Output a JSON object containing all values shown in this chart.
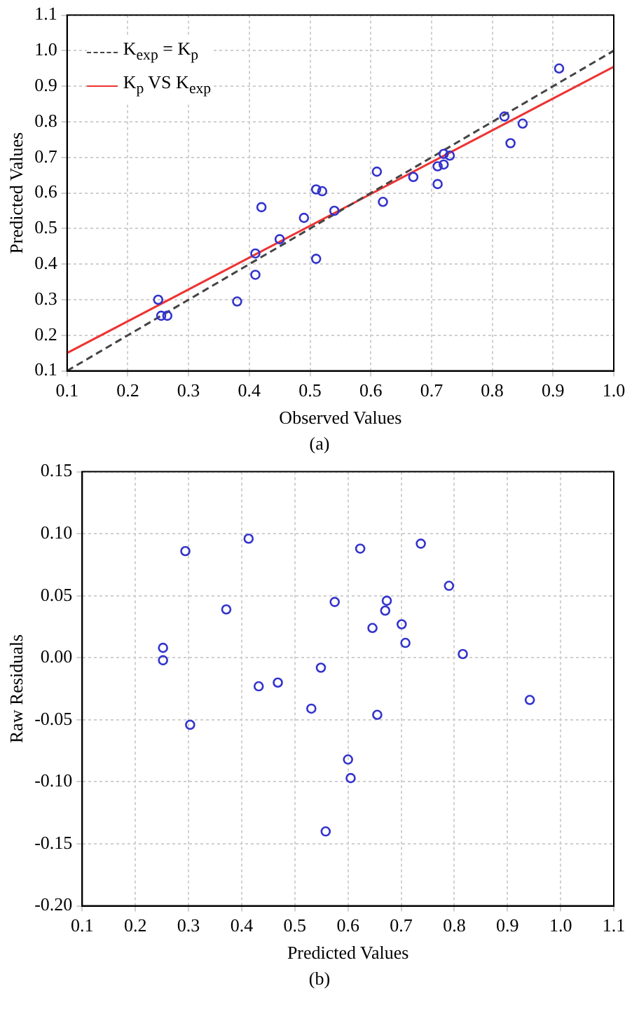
{
  "chart_data": [
    {
      "type": "scatter",
      "xlabel": "Observed Values",
      "ylabel": "Predicted Values",
      "annotations": [
        "(a)"
      ],
      "grid": true,
      "legend": "top left",
      "xlim": [
        0.1,
        1.0
      ],
      "xticks": [
        0.1,
        0.2,
        0.3,
        0.4,
        0.5,
        0.6,
        0.7,
        0.8,
        0.9,
        {
          "value": 1.0,
          "label": "1.0"
        }
      ],
      "ylim": [
        0.1,
        1.1
      ],
      "yticks": [
        0.1,
        0.2,
        0.3,
        0.4,
        0.5,
        0.6,
        0.7,
        0.8,
        0.9,
        {
          "value": 1.0,
          "label": "1.0"
        },
        1.1
      ],
      "series": [
        {
          "type": "scatter",
          "marker": "circle",
          "color": "#3333cc",
          "x": [
            0.25,
            0.255,
            0.265,
            0.38,
            0.41,
            0.41,
            0.42,
            0.45,
            0.49,
            0.51,
            0.51,
            0.52,
            0.54,
            0.61,
            0.62,
            0.67,
            0.71,
            0.71,
            0.72,
            0.72,
            0.73,
            0.82,
            0.83,
            0.85,
            0.91
          ],
          "values": [
            0.3,
            0.255,
            0.255,
            0.295,
            0.37,
            0.43,
            0.56,
            0.47,
            0.53,
            0.415,
            0.61,
            0.605,
            0.55,
            0.66,
            0.575,
            0.645,
            0.625,
            0.675,
            0.68,
            0.71,
            0.705,
            0.815,
            0.74,
            0.795,
            0.95
          ]
        },
        {
          "type": "line",
          "name": "K$_{exp}$ = K$_{p}$",
          "line_style": "dashed",
          "marker": "none",
          "color": "#444444",
          "x": [
            0.1,
            1.0
          ],
          "values": [
            0.1,
            1.0
          ]
        },
        {
          "type": "line",
          "name": "K$_{p}$ VS K$_{exp}$",
          "line_style": "solid",
          "marker": "none",
          "color": "#ee3333",
          "x": [
            0.1,
            1.0
          ],
          "values": [
            0.15,
            0.955
          ]
        }
      ]
    },
    {
      "type": "scatter",
      "xlabel": "Predicted Values",
      "ylabel": "Raw Residuals",
      "annotations": [
        "(b)"
      ],
      "grid": true,
      "xlim": [
        0.1,
        1.1
      ],
      "xticks": [
        0.1,
        0.2,
        0.3,
        0.4,
        0.5,
        0.6,
        0.7,
        0.8,
        0.9,
        {
          "value": 1.0,
          "label": "1.0"
        },
        1.1
      ],
      "ylim": [
        -0.2,
        0.15
      ],
      "yticks": [
        {
          "value": -0.2,
          "label": "-0.20"
        },
        -0.15,
        {
          "value": -0.1,
          "label": "-0.10"
        },
        -0.05,
        {
          "value": 0,
          "label": "0.00"
        },
        0.05,
        {
          "value": 0.1,
          "label": "0.10"
        },
        0.15
      ],
      "series": [
        {
          "type": "scatter",
          "marker": "circle",
          "color": "#3333cc",
          "x": [
            0.294,
            0.413,
            0.623,
            0.737,
            0.79,
            0.371,
            0.575,
            0.673,
            0.67,
            0.646,
            0.701,
            0.708,
            0.252,
            0.252,
            0.816,
            0.549,
            0.432,
            0.468,
            0.531,
            0.655,
            0.303,
            0.942,
            0.6,
            0.605,
            0.558
          ],
          "values": [
            0.086,
            0.096,
            0.088,
            0.092,
            0.058,
            0.039,
            0.045,
            0.046,
            0.038,
            0.024,
            0.027,
            0.012,
            0.008,
            -0.002,
            0.003,
            -0.008,
            -0.023,
            -0.02,
            -0.041,
            -0.046,
            -0.054,
            -0.034,
            -0.082,
            -0.097,
            -0.14
          ]
        }
      ]
    }
  ]
}
